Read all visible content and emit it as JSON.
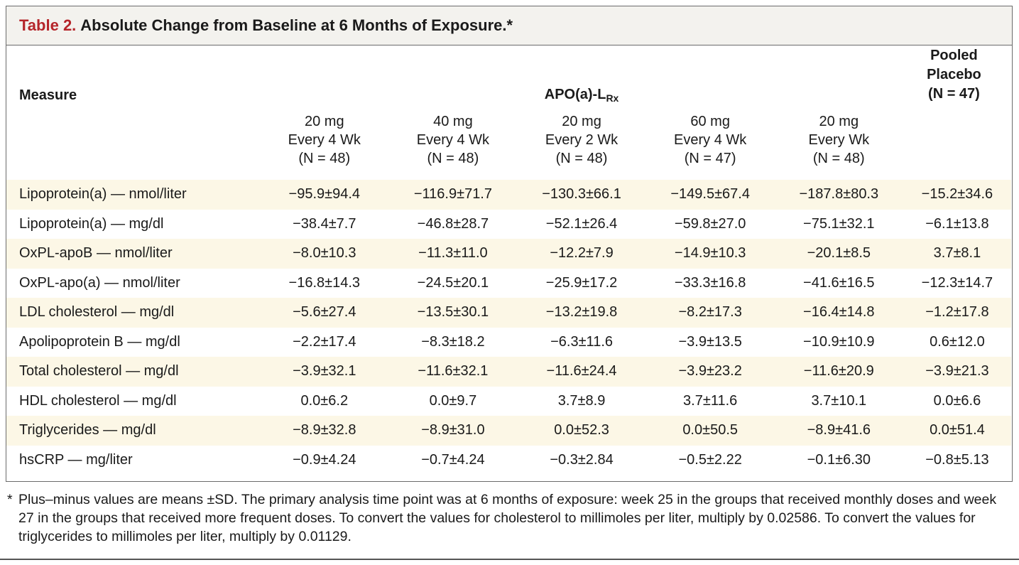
{
  "title": {
    "label": "Table 2.",
    "text": "Absolute Change from Baseline at 6 Months of Exposure.*"
  },
  "header": {
    "measure": "Measure",
    "drug_name": "APO(a)-L",
    "drug_sub": "Rx",
    "placebo_line1": "Pooled Placebo",
    "placebo_line2": "(N = 47)",
    "columns": [
      {
        "dose": "20 mg",
        "schedule": "Every 4 Wk",
        "n": "(N = 48)"
      },
      {
        "dose": "40 mg",
        "schedule": "Every 4 Wk",
        "n": "(N = 48)"
      },
      {
        "dose": "20 mg",
        "schedule": "Every 2 Wk",
        "n": "(N = 48)"
      },
      {
        "dose": "60 mg",
        "schedule": "Every 4 Wk",
        "n": "(N = 47)"
      },
      {
        "dose": "20 mg",
        "schedule": "Every Wk",
        "n": "(N = 48)"
      }
    ]
  },
  "rows": [
    {
      "measure": "Lipoprotein(a) — nmol/liter",
      "values": [
        "−95.9±94.4",
        "−116.9±71.7",
        "−130.3±66.1",
        "−149.5±67.4",
        "−187.8±80.3",
        "−15.2±34.6"
      ]
    },
    {
      "measure": "Lipoprotein(a) — mg/dl",
      "values": [
        "−38.4±7.7",
        "−46.8±28.7",
        "−52.1±26.4",
        "−59.8±27.0",
        "−75.1±32.1",
        "−6.1±13.8"
      ]
    },
    {
      "measure": "OxPL-apoB — nmol/liter",
      "values": [
        "−8.0±10.3",
        "−11.3±11.0",
        "−12.2±7.9",
        "−14.9±10.3",
        "−20.1±8.5",
        "3.7±8.1"
      ]
    },
    {
      "measure": "OxPL-apo(a) — nmol/liter",
      "values": [
        "−16.8±14.3",
        "−24.5±20.1",
        "−25.9±17.2",
        "−33.3±16.8",
        "−41.6±16.5",
        "−12.3±14.7"
      ]
    },
    {
      "measure": "LDL cholesterol — mg/dl",
      "values": [
        "−5.6±27.4",
        "−13.5±30.1",
        "−13.2±19.8",
        "−8.2±17.3",
        "−16.4±14.8",
        "−1.2±17.8"
      ]
    },
    {
      "measure": "Apolipoprotein B — mg/dl",
      "values": [
        "−2.2±17.4",
        "−8.3±18.2",
        "−6.3±11.6",
        "−3.9±13.5",
        "−10.9±10.9",
        "0.6±12.0"
      ]
    },
    {
      "measure": "Total cholesterol — mg/dl",
      "values": [
        "−3.9±32.1",
        "−11.6±32.1",
        "−11.6±24.4",
        "−3.9±23.2",
        "−11.6±20.9",
        "−3.9±21.3"
      ]
    },
    {
      "measure": "HDL cholesterol — mg/dl",
      "values": [
        "0.0±6.2",
        "0.0±9.7",
        "3.7±8.9",
        "3.7±11.6",
        "3.7±10.1",
        "0.0±6.6"
      ]
    },
    {
      "measure": "Triglycerides — mg/dl",
      "values": [
        "−8.9±32.8",
        "−8.9±31.0",
        "0.0±52.3",
        "0.0±50.5",
        "−8.9±41.6",
        "0.0±51.4"
      ]
    },
    {
      "measure": "hsCRP — mg/liter",
      "values": [
        "−0.9±4.24",
        "−0.7±4.24",
        "−0.3±2.84",
        "−0.5±2.22",
        "−0.1±6.30",
        "−0.8±5.13"
      ]
    }
  ],
  "footnote": {
    "mark": "*",
    "text": "Plus–minus values are means ±SD. The primary analysis time point was at 6 months of exposure: week 25 in the groups that received monthly doses and week 27 in the groups that received more frequent doses. To convert the values for cholesterol to millimoles per liter, multiply by 0.02586. To convert the values for triglycerides to millimoles per liter, multiply by 0.01129."
  },
  "colors": {
    "title_label": "#b5252a",
    "title_bar_bg": "#f3f2ee",
    "row_shade": "#fcf7e6",
    "border": "#6b6b6b"
  }
}
